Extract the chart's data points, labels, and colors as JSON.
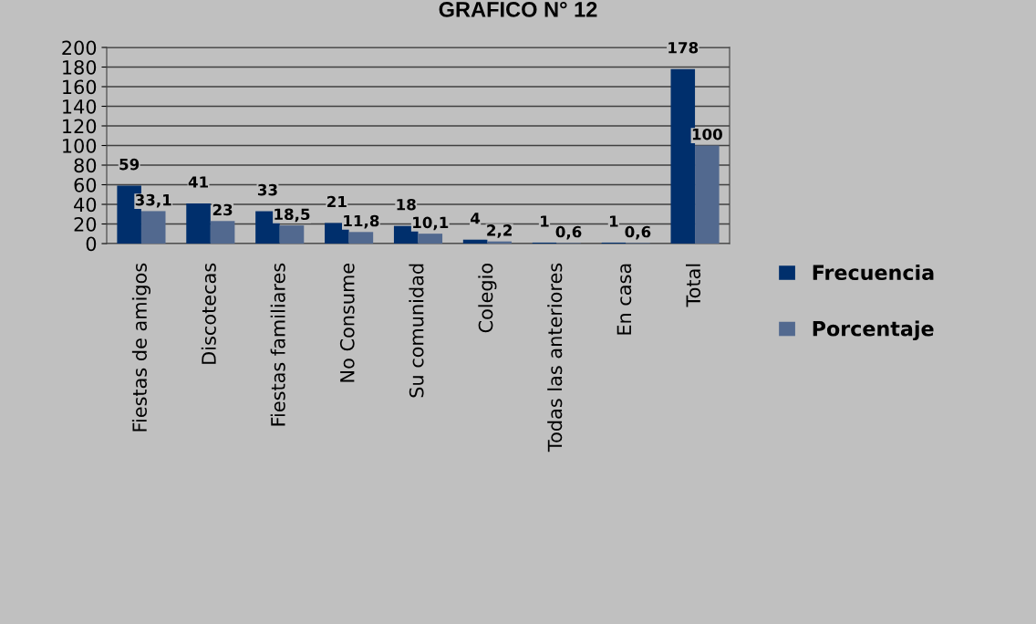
{
  "chart_data": {
    "type": "bar",
    "title": "GRAFICO N° 12",
    "categories": [
      "Fiestas de amigos",
      "Discotecas",
      "Fiestas familiares",
      "No Consume",
      "Su comunidad",
      "Colegio",
      "Todas las anteriores",
      "En casa",
      "Total"
    ],
    "series": [
      {
        "name": "Frecuencia",
        "color": "#002f6c",
        "values": [
          59,
          41,
          33,
          21,
          18,
          4,
          1,
          1,
          178
        ],
        "value_labels": [
          "59",
          "41",
          "33",
          "21",
          "18",
          "4",
          "1",
          "1",
          "178"
        ]
      },
      {
        "name": "Porcentaje",
        "color": "#52698f",
        "values": [
          33.1,
          23,
          18.5,
          11.8,
          10.1,
          2.2,
          0.6,
          0.6,
          100
        ],
        "value_labels": [
          "33,1",
          "23",
          "18,5",
          "11,8",
          "10,1",
          "2,2",
          "0,6",
          "0,6",
          "100"
        ]
      }
    ],
    "ylim": [
      0,
      200
    ],
    "yticks": [
      0,
      20,
      40,
      60,
      80,
      100,
      120,
      140,
      160,
      180,
      200
    ],
    "grid": "y",
    "legend": "right"
  }
}
